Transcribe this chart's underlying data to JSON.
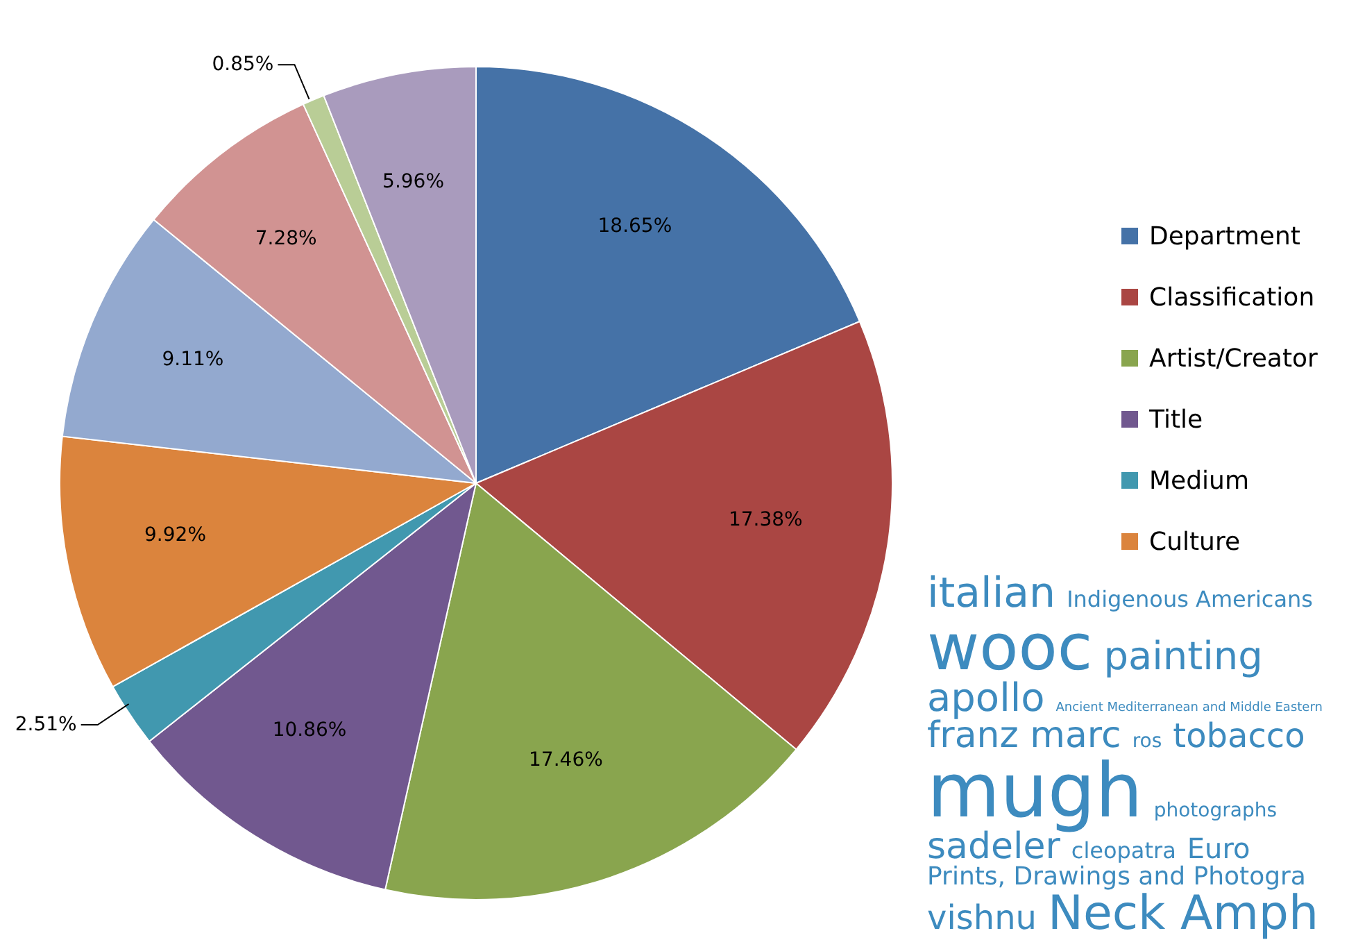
{
  "chart_data": {
    "type": "pie",
    "categories": [
      "Department",
      "Classification",
      "Artist/Creator",
      "Title",
      "Medium",
      "Culture",
      null,
      null,
      null,
      null
    ],
    "values": [
      18.65,
      17.38,
      17.46,
      10.86,
      2.51,
      9.92,
      9.11,
      7.28,
      0.85,
      5.96
    ],
    "value_labels": [
      "18.65%",
      "17.38%",
      "17.46%",
      "10.86%",
      "2.51%",
      "9.92%",
      "9.11%",
      "7.28%",
      "0.85%",
      "5.96%"
    ],
    "colors": [
      "#4572a7",
      "#aa4643",
      "#89a54e",
      "#71588f",
      "#4198af",
      "#db843d",
      "#93a9cf",
      "#d19392",
      "#b9cd96",
      "#a99bbd"
    ],
    "legend": "right",
    "annotations": [
      "italian",
      "Indigenous Americans",
      "wooc",
      "painting",
      "apollo",
      "Ancient Mediterranean and Middle Eastern",
      "franz marc",
      "ros",
      "tobacco",
      "mugh",
      "photographs",
      "sadeler",
      "cleopatra",
      "Euro",
      "Prints, Drawings and Photogra",
      "vishnu",
      "Neck Amph"
    ]
  }
}
